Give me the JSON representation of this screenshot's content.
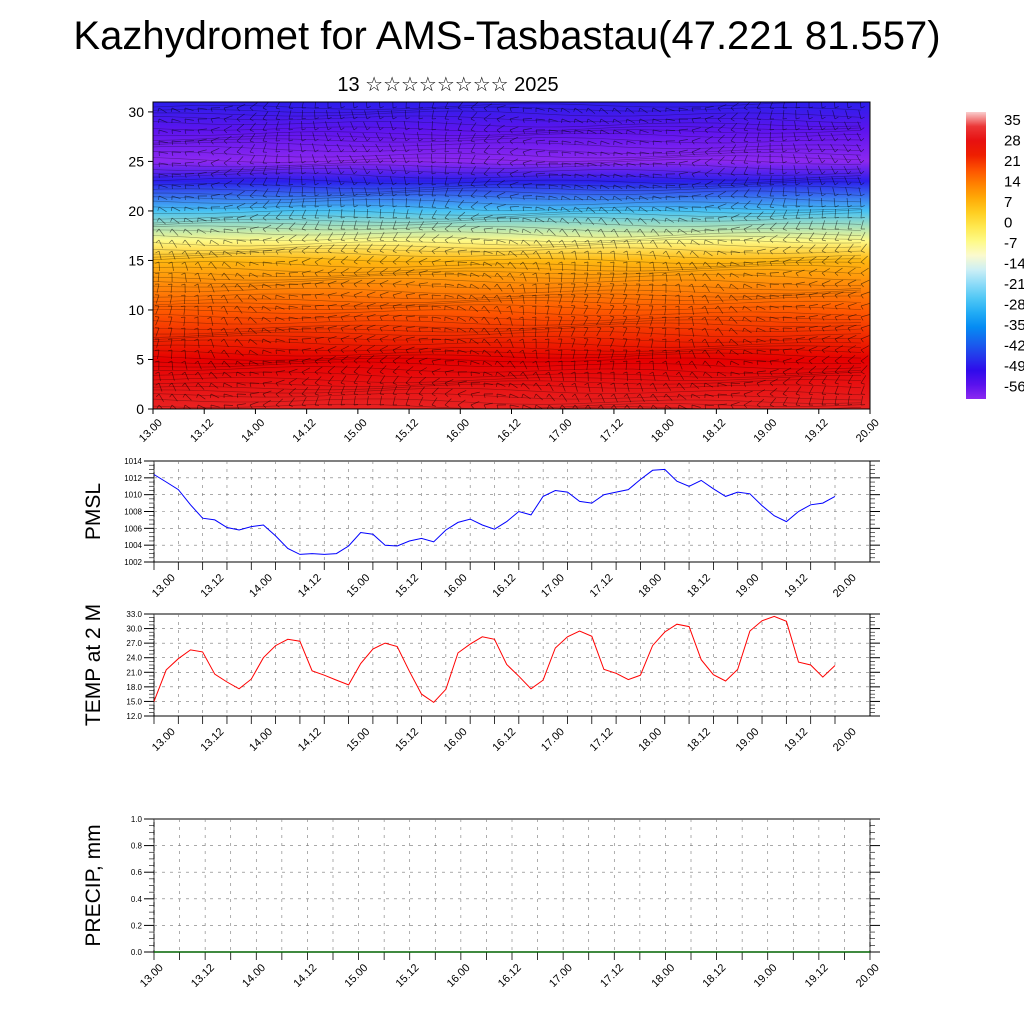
{
  "header": {
    "title": "Kazhydromet for AMS-Tasbastau(47.221 81.557)",
    "subtitle": "13 ☆☆☆☆☆☆☆☆ 2025"
  },
  "colorbar": {
    "labels": [
      "35",
      "28",
      "21",
      "14",
      "7",
      "0",
      "-7",
      "-14",
      "-21",
      "-28",
      "-35",
      "-42",
      "-49",
      "-56"
    ]
  },
  "chart_data": [
    {
      "type": "heatmap",
      "title": "",
      "ylim": [
        0,
        31
      ],
      "yticks": [
        "0",
        "5",
        "10",
        "15",
        "20",
        "25",
        "30"
      ],
      "xticks": [
        "13.00",
        "13.12",
        "14.00",
        "14.12",
        "15.00",
        "15.12",
        "16.00",
        "16.12",
        "17.00",
        "17.12",
        "18.00",
        "18.12",
        "19.00",
        "19.12",
        "20.00"
      ],
      "colorscale_min": -56,
      "colorscale_max": 35,
      "profile_levels": [
        0,
        5,
        10,
        15,
        17,
        20,
        23,
        25,
        28,
        31
      ],
      "profile_values": [
        28,
        24,
        16,
        6,
        -6,
        -25,
        -45,
        -56,
        -52,
        -45
      ],
      "overlay": "wind barbs"
    },
    {
      "type": "line",
      "ylabel": "PMSL",
      "ylim": [
        1002,
        1014
      ],
      "yticks": [
        "1002",
        "1004",
        "1006",
        "1008",
        "1010",
        "1012",
        "1014"
      ],
      "xticks": [
        "13.00",
        "13.12",
        "14.00",
        "14.12",
        "15.00",
        "15.12",
        "16.00",
        "16.12",
        "17.00",
        "17.12",
        "18.00",
        "18.12",
        "19.00",
        "19.12",
        "20.00"
      ],
      "x": [
        0,
        3,
        6,
        9,
        12,
        15,
        18,
        21,
        24,
        27,
        30,
        33,
        36,
        39,
        42,
        45,
        48,
        51,
        54,
        57,
        60,
        63,
        66,
        69,
        72,
        75,
        78,
        81,
        84,
        87,
        90,
        93,
        96,
        99,
        102,
        105,
        108,
        111,
        114,
        117,
        120,
        123,
        126,
        129,
        132,
        135,
        138,
        141,
        144,
        147,
        150,
        153,
        156,
        159,
        162,
        165,
        168
      ],
      "series": [
        {
          "color": "#0000ff",
          "values": [
            1012.4,
            1011.5,
            1010.6,
            1008.8,
            1007.2,
            1007.0,
            1006.1,
            1005.8,
            1006.2,
            1006.4,
            1005.1,
            1003.6,
            1002.9,
            1003.0,
            1002.9,
            1003.0,
            1003.9,
            1005.5,
            1005.3,
            1004.0,
            1003.9,
            1004.5,
            1004.8,
            1004.4,
            1005.8,
            1006.7,
            1007.1,
            1006.4,
            1005.9,
            1006.8,
            1008.0,
            1007.6,
            1009.8,
            1010.5,
            1010.3,
            1009.2,
            1009.0,
            1010.0,
            1010.3,
            1010.6,
            1011.8,
            1012.9,
            1013.0,
            1011.6,
            1011.0,
            1011.7,
            1010.7,
            1009.8,
            1010.3,
            1010.1,
            1008.7,
            1007.5,
            1006.8,
            1008.0,
            1008.8,
            1009.0,
            1009.8
          ]
        }
      ]
    },
    {
      "type": "line",
      "ylabel": "TEMP at 2 M",
      "ylim": [
        12,
        33
      ],
      "yticks": [
        "12.0",
        "15.0",
        "18.0",
        "21.0",
        "24.0",
        "27.0",
        "30.0",
        "33.0"
      ],
      "xticks": [
        "13.00",
        "13.12",
        "14.00",
        "14.12",
        "15.00",
        "15.12",
        "16.00",
        "16.12",
        "17.00",
        "17.12",
        "18.00",
        "18.12",
        "19.00",
        "19.12",
        "20.00"
      ],
      "x": [
        0,
        3,
        6,
        9,
        12,
        15,
        18,
        21,
        24,
        27,
        30,
        33,
        36,
        39,
        42,
        45,
        48,
        51,
        54,
        57,
        60,
        63,
        66,
        69,
        72,
        75,
        78,
        81,
        84,
        87,
        90,
        93,
        96,
        99,
        102,
        105,
        108,
        111,
        114,
        117,
        120,
        123,
        126,
        129,
        132,
        135,
        138,
        141,
        144,
        147,
        150,
        153,
        156,
        159,
        162,
        165,
        168
      ],
      "series": [
        {
          "color": "#ff0000",
          "values": [
            15.0,
            21.5,
            23.8,
            25.6,
            25.2,
            20.6,
            19.0,
            17.6,
            19.6,
            24.0,
            26.5,
            27.8,
            27.4,
            21.3,
            20.4,
            19.4,
            18.4,
            22.8,
            25.8,
            27.0,
            26.3,
            21.2,
            16.5,
            14.8,
            17.5,
            25.0,
            26.8,
            28.3,
            27.8,
            22.6,
            20.2,
            17.6,
            19.4,
            26.0,
            28.3,
            29.5,
            28.4,
            21.6,
            20.8,
            19.5,
            20.4,
            26.5,
            29.3,
            30.9,
            30.4,
            23.6,
            20.5,
            19.2,
            21.6,
            29.5,
            31.6,
            32.5,
            31.5,
            23.1,
            22.5,
            20.0,
            22.4
          ]
        }
      ]
    },
    {
      "type": "line",
      "ylabel": "PRECIP, mm",
      "ylim": [
        0,
        1
      ],
      "yticks": [
        "0.0",
        "0.2",
        "0.4",
        "0.6",
        "0.8",
        "1.0"
      ],
      "xticks": [
        "13.00",
        "13.12",
        "14.00",
        "14.12",
        "15.00",
        "15.12",
        "16.00",
        "16.12",
        "17.00",
        "17.12",
        "18.00",
        "18.12",
        "19.00",
        "19.12",
        "20.00"
      ],
      "series": [
        {
          "color": "#006400",
          "values": [
            0,
            0,
            0,
            0,
            0,
            0,
            0,
            0,
            0,
            0,
            0,
            0,
            0,
            0,
            0,
            0,
            0,
            0,
            0,
            0,
            0,
            0,
            0,
            0,
            0,
            0,
            0,
            0,
            0,
            0,
            0,
            0,
            0,
            0,
            0,
            0,
            0,
            0,
            0,
            0,
            0,
            0,
            0,
            0,
            0,
            0,
            0,
            0,
            0,
            0,
            0,
            0,
            0,
            0,
            0,
            0,
            0
          ]
        }
      ]
    }
  ]
}
